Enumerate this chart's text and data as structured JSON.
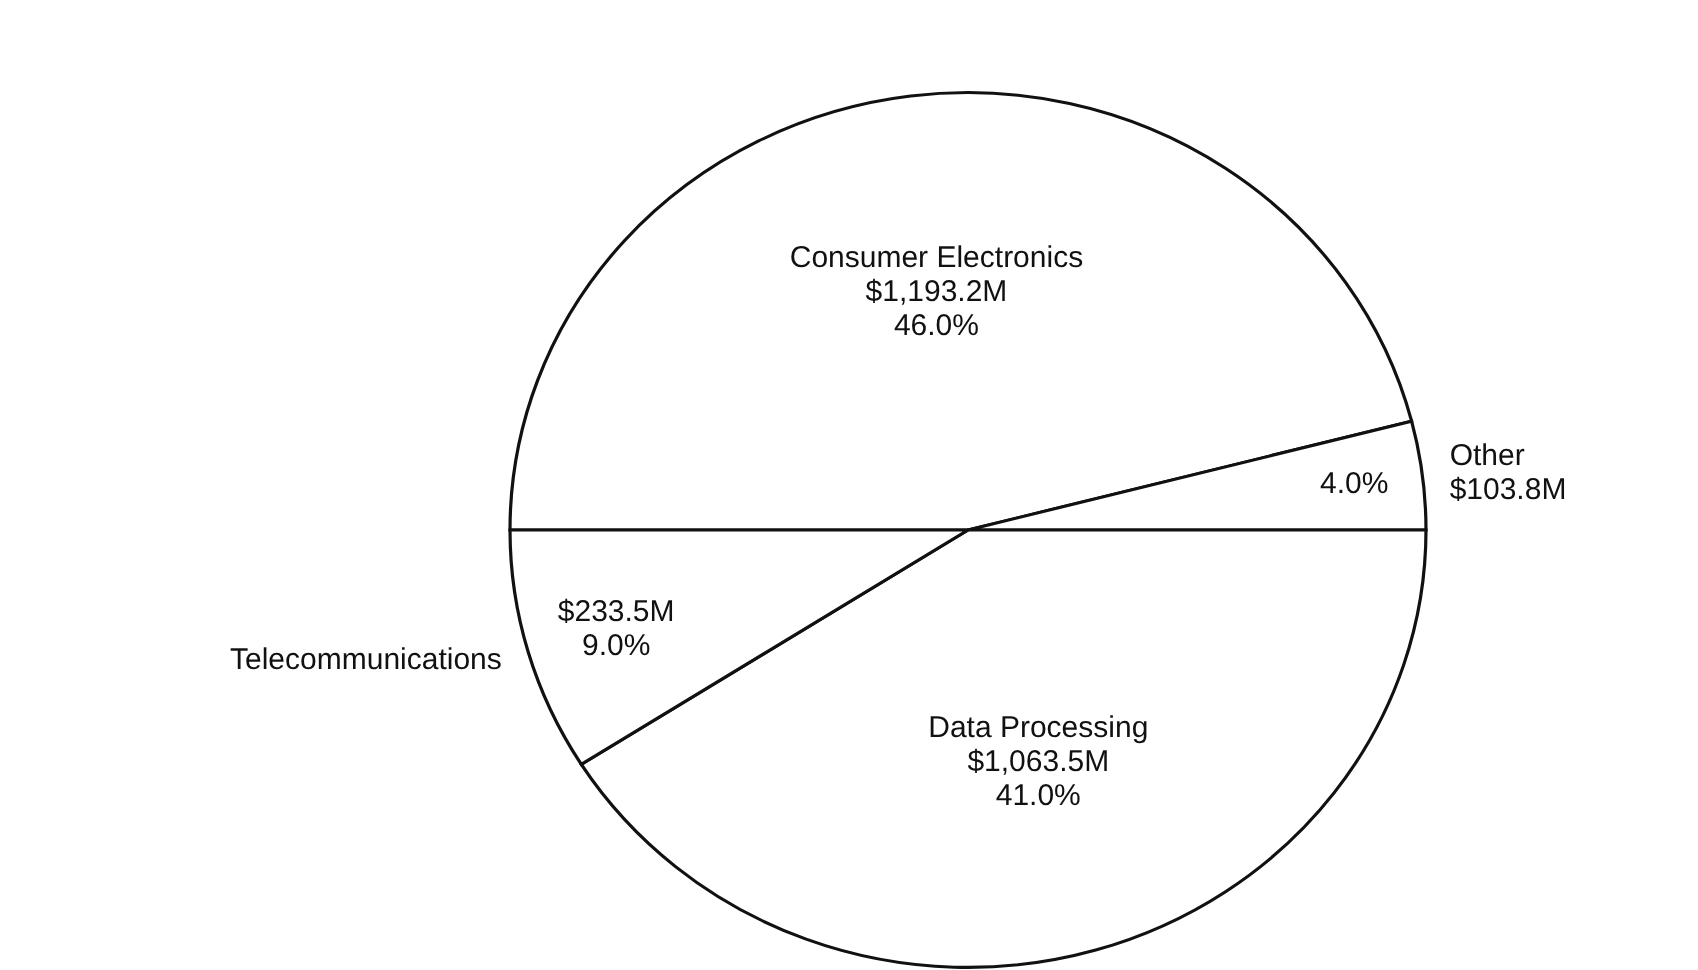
{
  "chart_data": {
    "type": "pie",
    "categories": [
      "Consumer Electronics",
      "Other",
      "Data Processing",
      "Telecommunications"
    ],
    "values": [
      46.0,
      4.0,
      41.0,
      9.0
    ],
    "colors": [
      "#ffffff",
      "#ffffff",
      "#ffffff",
      "#ffffff"
    ],
    "value_labels": [
      "46.0%",
      "4.0%",
      "41.0%",
      "9.0%"
    ],
    "annotations": [
      {
        "text": "$1,193.2M",
        "x": "Consumer Electronics"
      },
      {
        "text": "$103.8M",
        "x": "Other"
      },
      {
        "text": "$1,063.5M",
        "x": "Data Processing"
      },
      {
        "text": "$233.5M",
        "x": "Telecommunications"
      }
    ],
    "legend": false
  }
}
